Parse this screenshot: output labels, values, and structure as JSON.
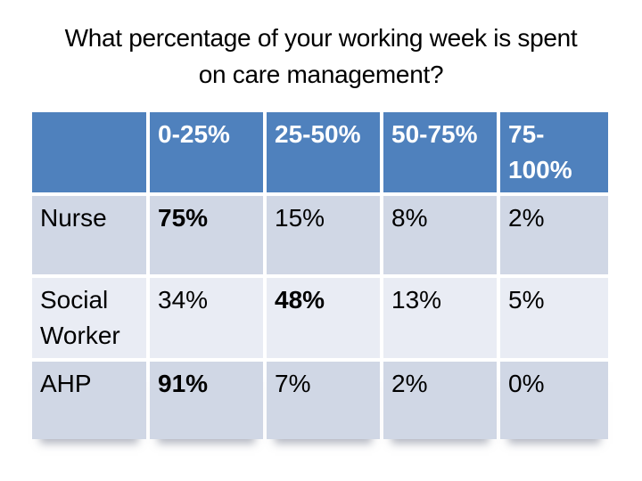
{
  "slide": {
    "title_line1": "What percentage of your working week is spent",
    "title_line2": "on care management?"
  },
  "table": {
    "header": [
      "",
      "0-25%",
      "25-50%",
      "50-75%",
      "75-100%"
    ],
    "rows": [
      {
        "label": "Nurse",
        "values": [
          "75%",
          "15%",
          "8%",
          "2%"
        ],
        "bold_value_index": 0
      },
      {
        "label": "Social Worker",
        "values": [
          "34%",
          "48%",
          "13%",
          "5%"
        ],
        "bold_value_index": 1
      },
      {
        "label": "AHP",
        "values": [
          "91%",
          "7%",
          "2%",
          "0%"
        ],
        "bold_value_index": 0
      }
    ]
  },
  "colors": {
    "header_bg": "#4F81BD",
    "band_dark": "#D0D7E5",
    "band_light": "#E9ECF4",
    "header_text": "#FFFFFF",
    "body_text": "#000000",
    "background": "#FFFFFF"
  },
  "chart_data": {
    "type": "table",
    "title": "What percentage of your working week is spent on care management?",
    "categories": [
      "0-25%",
      "25-50%",
      "50-75%",
      "75-100%"
    ],
    "series": [
      {
        "name": "Nurse",
        "values": [
          75,
          15,
          8,
          2
        ]
      },
      {
        "name": "Social Worker",
        "values": [
          34,
          48,
          13,
          5
        ]
      },
      {
        "name": "AHP",
        "values": [
          91,
          7,
          2,
          0
        ]
      }
    ],
    "unit": "%"
  }
}
